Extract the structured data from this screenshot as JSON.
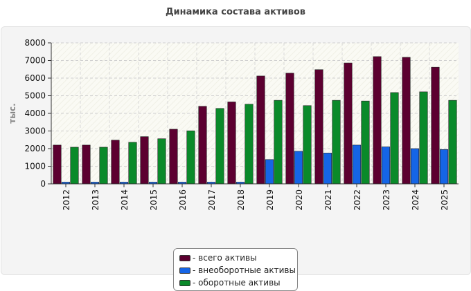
{
  "page": {
    "title": "Динамика состава активов"
  },
  "chart_data": {
    "type": "bar",
    "title": "Динамика состава активов",
    "xlabel": "",
    "ylabel": "тыс.",
    "ylim": [
      0,
      8000
    ],
    "yticks": [
      0,
      1000,
      2000,
      3000,
      4000,
      5000,
      6000,
      7000,
      8000
    ],
    "grid": true,
    "legend_position": "bottom",
    "categories": [
      "2012",
      "2013",
      "2014",
      "2015",
      "2016",
      "2017",
      "2018",
      "2019",
      "2020",
      "2021",
      "2022",
      "2023",
      "2024",
      "2025"
    ],
    "series": [
      {
        "name": "- всего активы",
        "color": "#5c0030",
        "values": [
          2200,
          2200,
          2480,
          2680,
          3100,
          4400,
          4650,
          6120,
          6280,
          6480,
          6860,
          7220,
          7180,
          6620
        ]
      },
      {
        "name": "- внеоборотные активы",
        "color": "#1565e6",
        "values": [
          100,
          100,
          100,
          100,
          100,
          100,
          100,
          1380,
          1850,
          1750,
          2200,
          2100,
          2000,
          1950
        ]
      },
      {
        "name": "- оборотные активы",
        "color": "#0a8a2a",
        "values": [
          2080,
          2080,
          2360,
          2560,
          3010,
          4280,
          4520,
          4740,
          4440,
          4740,
          4700,
          5180,
          5220,
          4740
        ]
      }
    ]
  }
}
